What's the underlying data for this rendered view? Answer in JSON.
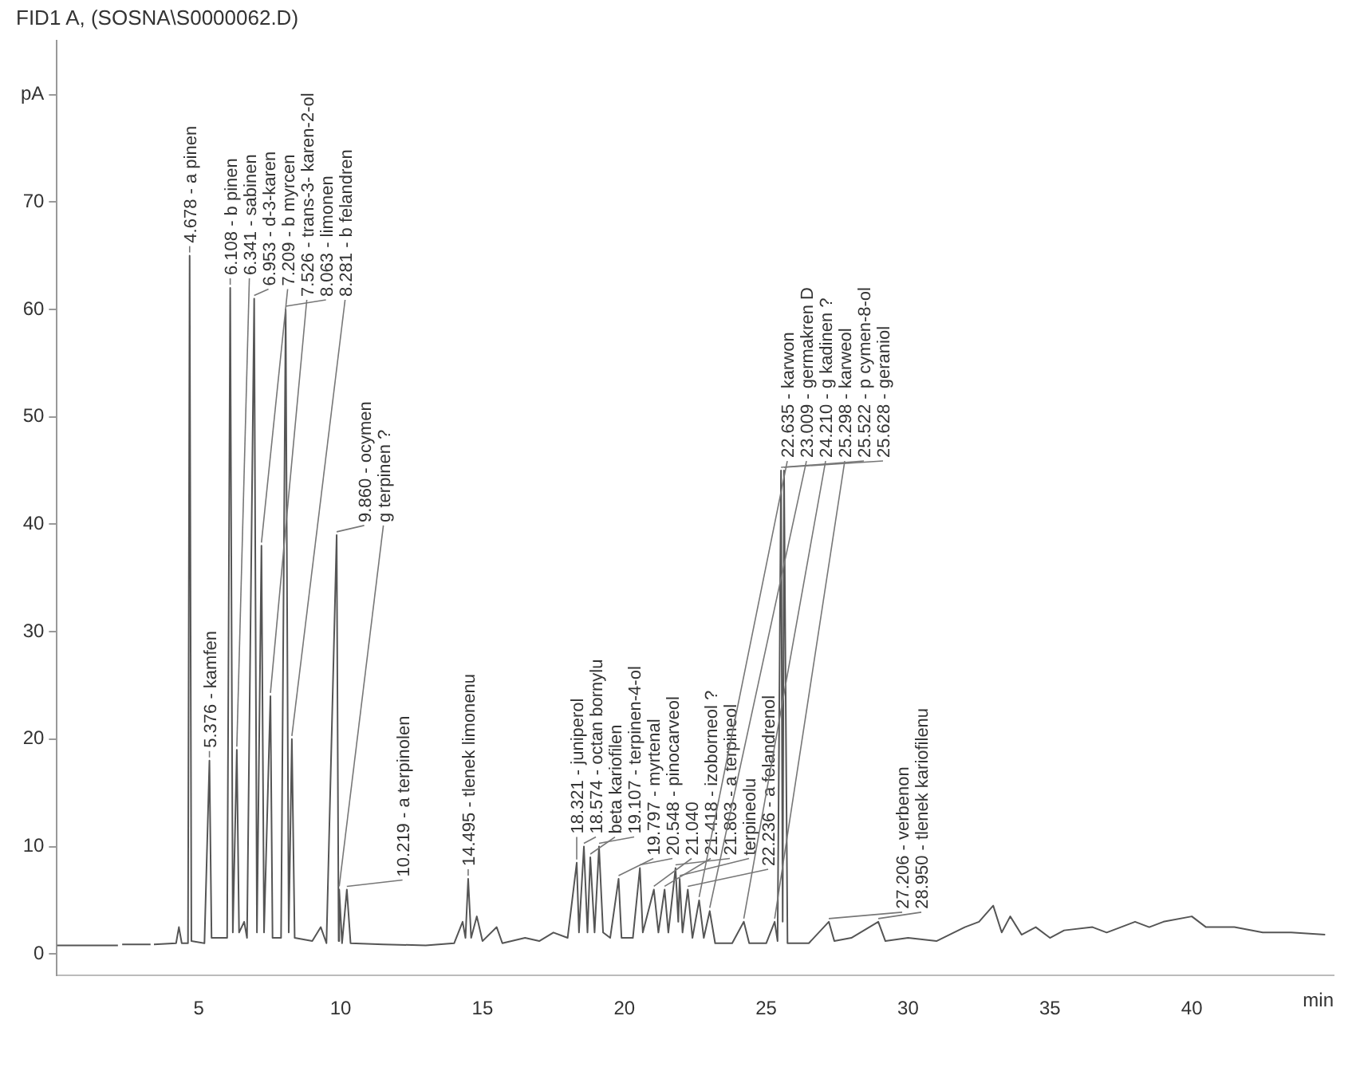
{
  "chart_data": {
    "type": "line",
    "title": "FID1 A, (SOSNA\\S0000062.D)",
    "xlabel": "min",
    "color": "#555555",
    "legend": false,
    "x": [
      0,
      2.15,
      2.24,
      2.3,
      3.3,
      3.35,
      3.42,
      4.2,
      4.3,
      4.4,
      4.62,
      4.678,
      4.74,
      5.2,
      5.376,
      5.45,
      6.0,
      6.108,
      6.2,
      6.341,
      6.42,
      6.6,
      6.7,
      6.953,
      7.05,
      7.209,
      7.3,
      7.526,
      7.6,
      7.9,
      8.063,
      8.17,
      8.281,
      8.38,
      9.0,
      9.3,
      9.5,
      9.86,
      9.93,
      9.95,
      10.05,
      10.219,
      10.35,
      11.5,
      13.0,
      14.0,
      14.3,
      14.4,
      14.495,
      14.6,
      14.8,
      15.0,
      15.5,
      15.7,
      16.5,
      17.0,
      17.5,
      18.0,
      18.321,
      18.4,
      18.574,
      18.7,
      18.8,
      18.95,
      19.107,
      19.25,
      19.5,
      19.797,
      19.9,
      20.3,
      20.548,
      20.65,
      21.04,
      21.2,
      21.418,
      21.55,
      21.803,
      21.9,
      21.95,
      22.05,
      22.236,
      22.4,
      22.635,
      22.8,
      23.009,
      23.2,
      23.8,
      24.21,
      24.4,
      25.0,
      25.298,
      25.4,
      25.522,
      25.58,
      25.628,
      25.75,
      26.5,
      27.206,
      27.4,
      28.0,
      28.95,
      29.2,
      30.0,
      31.0,
      32.0,
      32.5,
      33.0,
      33.3,
      33.6,
      34.0,
      34.5,
      35.0,
      35.5,
      36.5,
      37.0,
      38.0,
      38.5,
      39.0,
      40.0,
      40.5,
      41.5,
      42.5,
      43.5,
      44.7
    ],
    "values": [
      0.8,
      0.8,
      null,
      0.9,
      0.9,
      null,
      0.9,
      1,
      2.5,
      1,
      1,
      65,
      1.2,
      1,
      18,
      1.5,
      1.5,
      62,
      2,
      19,
      2,
      3,
      1.5,
      61,
      2,
      38,
      2,
      24,
      1.5,
      1.5,
      60,
      2,
      20,
      1.5,
      1.2,
      2.5,
      1,
      39,
      1.2,
      6,
      1,
      6,
      1,
      0.9,
      0.8,
      1,
      3,
      1.5,
      7,
      1.5,
      3.5,
      1.2,
      2.5,
      1,
      1.5,
      1.2,
      2,
      1.5,
      8.5,
      2,
      10,
      2,
      9,
      2,
      10,
      2,
      1.5,
      7,
      1.5,
      1.5,
      8,
      2,
      6,
      2,
      6,
      2,
      8,
      3,
      7,
      2,
      6,
      1.5,
      5,
      1.5,
      4,
      1,
      1,
      3,
      1,
      1,
      3,
      1.2,
      45,
      3,
      45,
      1,
      1,
      3,
      1.2,
      1.5,
      3,
      1.2,
      1.5,
      1.2,
      2.5,
      3,
      4.5,
      2,
      3.5,
      1.8,
      2.5,
      1.5,
      2.2,
      2.5,
      2,
      3,
      2.5,
      3,
      3.5,
      2.5,
      2.5,
      2,
      2,
      1.8
    ],
    "xlim": [
      0,
      45
    ],
    "xticks": [
      5,
      10,
      15,
      20,
      25,
      30,
      35,
      40
    ],
    "ylim": [
      -2,
      85
    ],
    "yticks": [
      0,
      10,
      20,
      30,
      40,
      50,
      60,
      70,
      {
        "value": 80,
        "label": "pA"
      }
    ],
    "annotations": [
      {
        "text": "4.678 - a pinen",
        "x": 4.678,
        "y": 65
      },
      {
        "text": "5.376 - kamfen",
        "x": 5.376,
        "y": 18
      },
      {
        "text": "6.108 - b pinen",
        "x": 6.108,
        "y": 62
      },
      {
        "text": "6.341 - sabinen",
        "x": 6.341,
        "y": 19
      },
      {
        "text": "6.953 - d-3-karen",
        "x": 6.953,
        "y": 61
      },
      {
        "text": "7.209 - b myrcen",
        "x": 7.209,
        "y": 38
      },
      {
        "text": "7.526 - trans-3- karen-2-ol",
        "x": 7.526,
        "y": 24
      },
      {
        "text": "8.063 - limonen",
        "x": 8.063,
        "y": 60
      },
      {
        "text": "8.281 - b felandren",
        "x": 8.281,
        "y": 20
      },
      {
        "text": "9.860 - ocymen",
        "x": 9.86,
        "y": 39
      },
      {
        "text": "g terpinen ?",
        "x": 9.95,
        "y": 6
      },
      {
        "text": "10.219 - a terpinolen",
        "x": 10.219,
        "y": 6
      },
      {
        "text": "14.495 - tlenek limonenu",
        "x": 14.495,
        "y": 7
      },
      {
        "text": "18.321 - juniperol",
        "x": 18.321,
        "y": 8.5
      },
      {
        "text": "18.574 - octan bornylu",
        "x": 18.574,
        "y": 10
      },
      {
        "text": "beta kariofilen",
        "x": 18.8,
        "y": 9
      },
      {
        "text": "19.107 - terpinen-4-ol",
        "x": 19.107,
        "y": 10
      },
      {
        "text": "19.797 - myrtenal",
        "x": 19.797,
        "y": 7
      },
      {
        "text": "20.548 - pinocarveol",
        "x": 20.548,
        "y": 8
      },
      {
        "text": "21.040",
        "x": 21.04,
        "y": 6
      },
      {
        "text": "21.418 - izoborneol ?",
        "x": 21.418,
        "y": 6
      },
      {
        "text": "21.803 - a terpineol",
        "x": 21.803,
        "y": 8
      },
      {
        "text": "terpineolu",
        "x": 21.95,
        "y": 7
      },
      {
        "text": "22.236 - a felandrenol",
        "x": 22.236,
        "y": 6
      },
      {
        "text": "22.635 - karwon",
        "x": 22.635,
        "y": 5
      },
      {
        "text": "23.009 - germakren D",
        "x": 23.009,
        "y": 4
      },
      {
        "text": "24.210 - g kadinen ?",
        "x": 24.21,
        "y": 3
      },
      {
        "text": "25.298 - karweol",
        "x": 25.298,
        "y": 3
      },
      {
        "text": "25.522 - p cymen-8-ol",
        "x": 25.522,
        "y": 45
      },
      {
        "text": "25.628 - geraniol",
        "x": 25.628,
        "y": 45
      },
      {
        "text": "27.206 - verbenon",
        "x": 27.206,
        "y": 3
      },
      {
        "text": "28.950 - tlenek kariofilenu",
        "x": 28.95,
        "y": 3
      }
    ]
  }
}
